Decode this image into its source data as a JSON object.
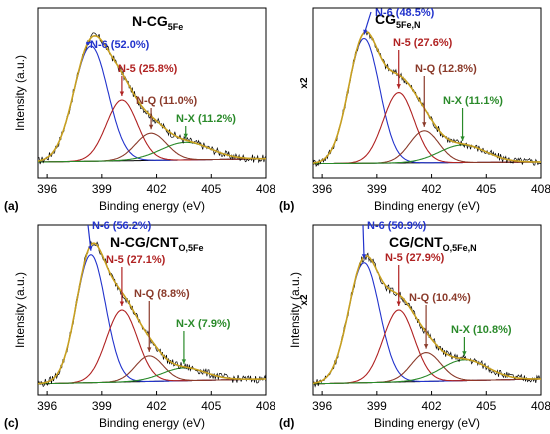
{
  "colors": {
    "N-6": "#2233cc",
    "N-5": "#b02222",
    "N-Q": "#8a3a2a",
    "N-X": "#2a8a2a",
    "envelope": "#c8a020",
    "baseline": "#000000",
    "raw": "#000000",
    "frame": "#000000"
  },
  "chart_data": [
    {
      "type": "line",
      "panel_label": "(a)",
      "title": "N-CG",
      "title_sub": "5Fe",
      "scale_label": "",
      "xlabel": "Binding energy (eV)",
      "ylabel": "Intensity (a.u.)",
      "xlim": [
        395.5,
        408
      ],
      "x_ticks": [
        "396",
        "399",
        "402",
        "405",
        "408"
      ],
      "grid": false,
      "peaks": [
        {
          "name": "N-6",
          "label": "N-6 (52.0%)",
          "center": 398.4,
          "fwhm": 2.2,
          "height": 0.72
        },
        {
          "name": "N-5",
          "label": "N-5 (25.8%)",
          "center": 400.1,
          "fwhm": 2.0,
          "height": 0.38
        },
        {
          "name": "N-Q",
          "label": "N-Q (11.0%)",
          "center": 401.7,
          "fwhm": 2.0,
          "height": 0.17
        },
        {
          "name": "N-X",
          "label": "N-X (11.2%)",
          "center": 403.6,
          "fwhm": 3.2,
          "height": 0.11
        }
      ],
      "background": [
        0.1,
        0.12
      ]
    },
    {
      "type": "line",
      "panel_label": "(b)",
      "title": "CG",
      "title_sub": "5Fe,N",
      "scale_label": "x2",
      "xlabel": "Binding energy (eV)",
      "ylabel": "",
      "xlim": [
        395.5,
        408
      ],
      "x_ticks": [
        "396",
        "399",
        "402",
        "405",
        "408"
      ],
      "grid": false,
      "peaks": [
        {
          "name": "N-6",
          "label": "N-6 (48.5%)",
          "center": 398.3,
          "fwhm": 2.0,
          "height": 0.78
        },
        {
          "name": "N-5",
          "label": "N-5 (27.6%)",
          "center": 400.2,
          "fwhm": 2.0,
          "height": 0.44
        },
        {
          "name": "N-Q",
          "label": "N-Q (12.8%)",
          "center": 401.6,
          "fwhm": 1.9,
          "height": 0.2
        },
        {
          "name": "N-X",
          "label": "N-X (11.1%)",
          "center": 403.7,
          "fwhm": 3.0,
          "height": 0.11
        }
      ],
      "background": [
        0.09,
        0.1
      ]
    },
    {
      "type": "line",
      "panel_label": "(c)",
      "title": "N-CG/CNT",
      "title_sub": "O,5Fe",
      "scale_label": "",
      "xlabel": "Binding energy (eV)",
      "ylabel": "Intensity (a.u.)",
      "xlim": [
        395.5,
        408
      ],
      "x_ticks": [
        "396",
        "399",
        "402",
        "405",
        "408"
      ],
      "grid": false,
      "peaks": [
        {
          "name": "N-6",
          "label": "N-6 (56.2%)",
          "center": 398.4,
          "fwhm": 1.9,
          "height": 0.8
        },
        {
          "name": "N-5",
          "label": "N-5 (27.1%)",
          "center": 400.1,
          "fwhm": 2.0,
          "height": 0.45
        },
        {
          "name": "N-Q",
          "label": "N-Q (8.8%)",
          "center": 401.6,
          "fwhm": 1.8,
          "height": 0.16
        },
        {
          "name": "N-X",
          "label": "N-X (7.9%)",
          "center": 403.5,
          "fwhm": 2.8,
          "height": 0.08
        }
      ],
      "background": [
        0.07,
        0.1
      ]
    },
    {
      "type": "line",
      "panel_label": "(d)",
      "title": "CG/CNT",
      "title_sub": "O,5Fe,N",
      "scale_label": "x2",
      "xlabel": "Binding energy (eV)",
      "ylabel": "Intensity (a.u.)",
      "xlim": [
        395.5,
        408
      ],
      "x_ticks": [
        "396",
        "399",
        "402",
        "405",
        "408"
      ],
      "grid": false,
      "peaks": [
        {
          "name": "N-6",
          "label": "N-6 (50.9%)",
          "center": 398.3,
          "fwhm": 2.0,
          "height": 0.75
        },
        {
          "name": "N-5",
          "label": "N-5 (27.9%)",
          "center": 400.2,
          "fwhm": 2.0,
          "height": 0.45
        },
        {
          "name": "N-Q",
          "label": "N-Q (10.4%)",
          "center": 401.7,
          "fwhm": 1.9,
          "height": 0.18
        },
        {
          "name": "N-X",
          "label": "N-X (10.8%)",
          "center": 403.8,
          "fwhm": 3.0,
          "height": 0.13
        }
      ],
      "background": [
        0.07,
        0.1
      ]
    }
  ]
}
